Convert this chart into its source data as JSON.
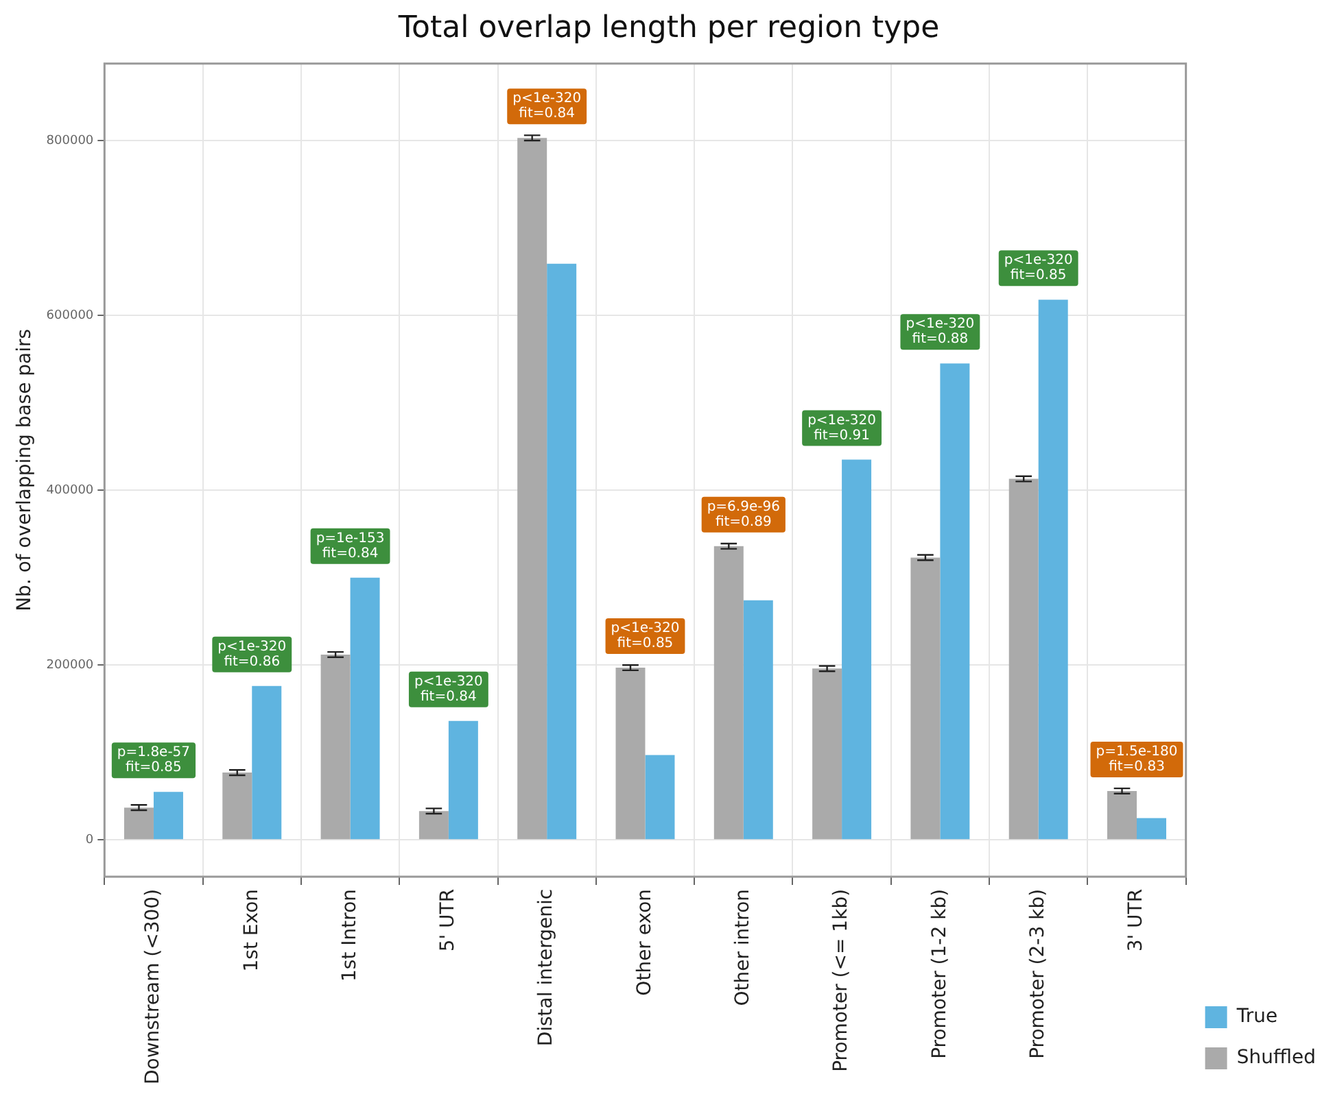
{
  "chart_data": {
    "type": "bar",
    "title": "Total overlap length per region type",
    "ylabel": "Nb. of overlapping base pairs",
    "categories": [
      "Downstream (<300)",
      "1st Exon",
      "1st Intron",
      "5' UTR",
      "Distal intergenic",
      "Other exon",
      "Other intron",
      "Promoter (<= 1kb)",
      "Promoter (1-2 kb)",
      "Promoter (2-3 kb)",
      "3' UTR"
    ],
    "series": [
      {
        "name": "Shuffled",
        "color": "#aaaaaa",
        "values": [
          37000,
          77000,
          212000,
          33000,
          803000,
          197000,
          336000,
          196000,
          323000,
          413000,
          56000
        ],
        "errors": [
          3000,
          3000,
          3000,
          3000,
          3000,
          3000,
          3000,
          3000,
          3000,
          3000,
          3000
        ]
      },
      {
        "name": "True",
        "color": "#5fb4e0",
        "values": [
          55000,
          176000,
          300000,
          136000,
          659000,
          97000,
          274000,
          435000,
          545000,
          618000,
          25000
        ]
      }
    ],
    "ylim": [
      -42000,
      888000
    ],
    "yticks": [
      0,
      200000,
      400000,
      600000,
      800000
    ],
    "grid": true,
    "legend": "bottom right",
    "annotations": [
      {
        "text": "p=1.8e-57\nfit=0.85",
        "x": "Downstream (<300)",
        "y": 55000
      },
      {
        "text": "p<1e-320\nfit=0.86",
        "x": "1st Exon",
        "y": 176000
      },
      {
        "text": "p=1e-153\nfit=0.84",
        "x": "1st Intron",
        "y": 300000
      },
      {
        "text": "p<1e-320\nfit=0.84",
        "x": "5' UTR",
        "y": 136000
      },
      {
        "text": "p<1e-320\nfit=0.84",
        "x": "Distal intergenic",
        "y": 803000
      },
      {
        "text": "p<1e-320\nfit=0.85",
        "x": "Other exon",
        "y": 197000
      },
      {
        "text": "p=6.9e-96\nfit=0.89",
        "x": "Other intron",
        "y": 336000
      },
      {
        "text": "p<1e-320\nfit=0.91",
        "x": "Promoter (<= 1kb)",
        "y": 435000
      },
      {
        "text": "p<1e-320\nfit=0.88",
        "x": "Promoter (1-2 kb)",
        "y": 545000
      },
      {
        "text": "p<1e-320\nfit=0.85",
        "x": "Promoter (2-3 kb)",
        "y": 618000
      },
      {
        "text": "p=1.5e-180\nfit=0.83",
        "x": "3' UTR",
        "y": 56000
      }
    ]
  }
}
